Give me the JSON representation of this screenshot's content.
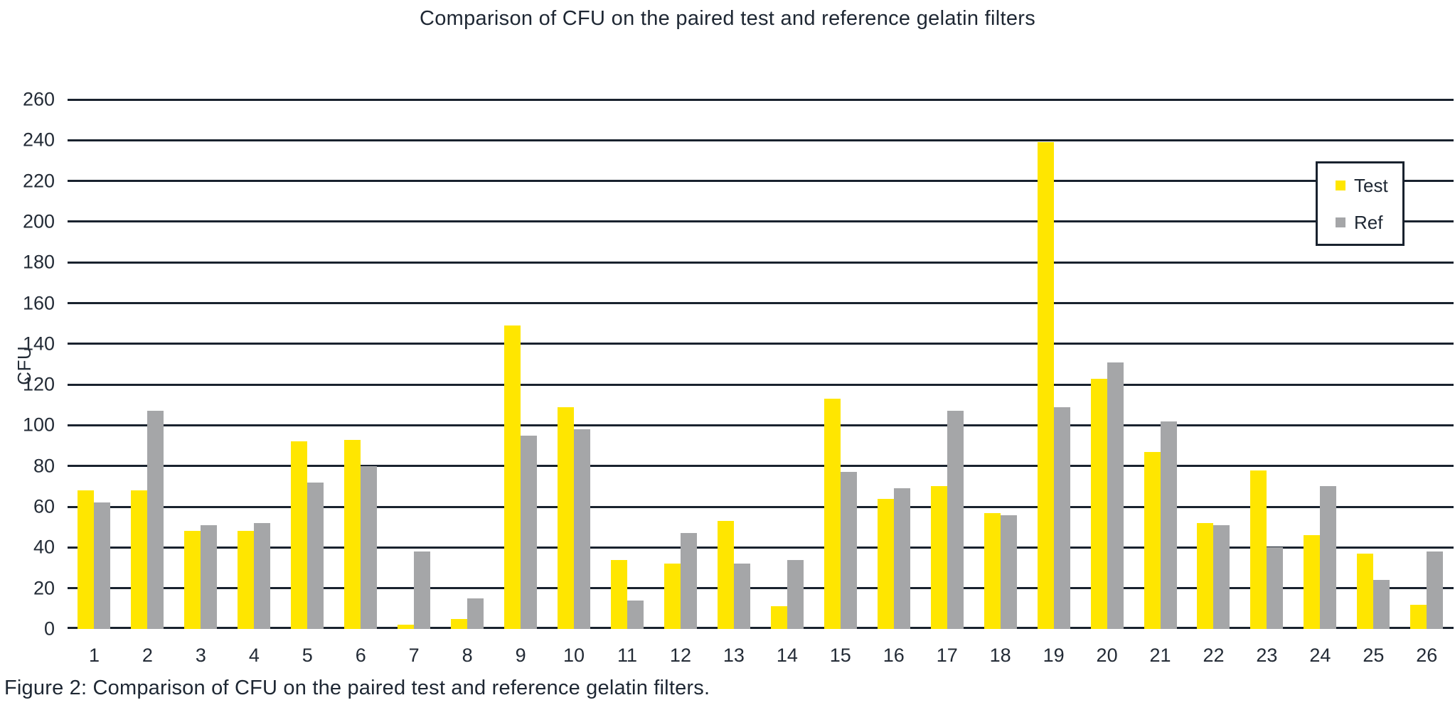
{
  "title": "Comparison of CFU on the paired test and reference gelatin filters",
  "caption": "Figure 2: Comparison of CFU on the paired test and reference gelatin filters.",
  "colors": {
    "test": "#FFE600",
    "ref": "#A5A6A8",
    "grid": "#19222E",
    "text": "#232B36",
    "background": "#FFFFFF"
  },
  "chart_data": {
    "type": "bar",
    "title": "Comparison of CFU on the paired test and reference gelatin filters",
    "xlabel": "",
    "ylabel": "CFU",
    "ylim": [
      0,
      260
    ],
    "ytick_step": 20,
    "grid": true,
    "legend_position": "top-right",
    "categories": [
      "1",
      "2",
      "3",
      "4",
      "5",
      "6",
      "7",
      "8",
      "9",
      "10",
      "11",
      "12",
      "13",
      "14",
      "15",
      "16",
      "17",
      "18",
      "19",
      "20",
      "21",
      "22",
      "23",
      "24",
      "25",
      "26"
    ],
    "series": [
      {
        "name": "Test",
        "color": "#FFE600",
        "values": [
          68,
          68,
          48,
          48,
          92,
          93,
          2,
          5,
          149,
          109,
          34,
          32,
          53,
          11,
          113,
          64,
          70,
          57,
          239,
          123,
          87,
          52,
          78,
          46,
          37,
          12
        ]
      },
      {
        "name": "Ref",
        "color": "#A5A6A8",
        "values": [
          62,
          107,
          51,
          52,
          72,
          80,
          38,
          15,
          95,
          98,
          14,
          47,
          32,
          34,
          77,
          69,
          107,
          56,
          109,
          131,
          102,
          51,
          40,
          70,
          24,
          38
        ]
      }
    ]
  }
}
